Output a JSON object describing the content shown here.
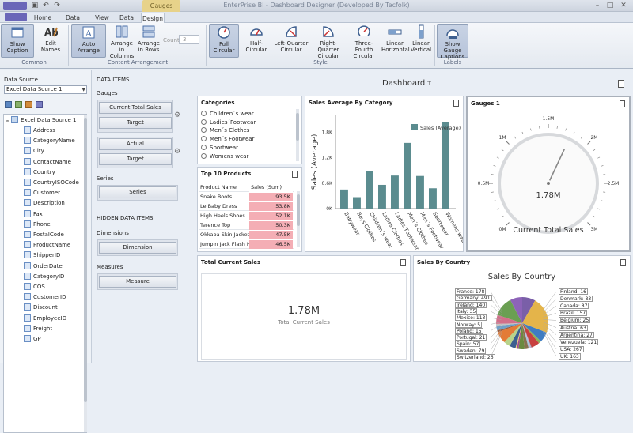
{
  "window": {
    "title": "EnterPrise BI - Dashboard Designer (Developed By Tecfolk)",
    "context_tab": "Gauges Tools"
  },
  "tabs": [
    {
      "label": "Home"
    },
    {
      "label": "Data Source"
    },
    {
      "label": "View"
    },
    {
      "label": "Data"
    },
    {
      "label": "Design"
    }
  ],
  "ribbon": {
    "buttons": [
      "Show Caption",
      "Edit Names",
      "Auto Arrange",
      "Arrange in Columns",
      "Arrange in Rows",
      "Full Circular",
      "Half-Circular",
      "Left-Quarter Circular",
      "Right-Quarter Circular",
      "Three-Fourth Circular",
      "Linear Horizontal",
      "Linear Vertical",
      "Show Gauge Captions"
    ],
    "count_label": "Count",
    "count_value": "3",
    "groups": [
      "Common",
      "Content Arrangement",
      "Style",
      "Labels"
    ]
  },
  "left": {
    "title": "Data Source",
    "select": "Excel Data Source 1",
    "root": "Excel Data Source 1",
    "fields": [
      "Address",
      "CategoryName",
      "City",
      "ContactName",
      "Country",
      "CountryISOCode",
      "Customer",
      "Description",
      "Fax",
      "Phone",
      "PostalCode",
      "ProductName",
      "ShipperID",
      "OrderDate",
      "CategoryID",
      "COS",
      "CustomerID",
      "Discount",
      "EmployeeID",
      "Freight",
      "GP"
    ]
  },
  "items": {
    "title": "DATA ITEMS",
    "gauges": "Gauges",
    "btn_current": "Current Total Sales",
    "btn_target1": "Target",
    "btn_actual": "Actual",
    "btn_target2": "Target",
    "series_label": "Series",
    "btn_series": "Series",
    "hidden": "HIDDEN DATA ITEMS",
    "dimensions": "Dimensions",
    "btn_dimension": "Dimension",
    "measures": "Measures",
    "btn_measure": "Measure"
  },
  "dashboard": {
    "title": "Dashboard",
    "categories": {
      "title": "Categories",
      "items": [
        "Children´s wear",
        "Ladies´Footwear",
        "Men´s Clothes",
        "Men´s Footwear",
        "Sportwear",
        "Womens wear"
      ]
    },
    "top10": {
      "title": "Top 10 Products",
      "col1": "Product Name",
      "col2": "Sales (Sum)",
      "rows": [
        [
          "Snake Boots",
          "93.5K"
        ],
        [
          "Le Baby Dress",
          "53.8K"
        ],
        [
          "High Heels Shoes",
          "52.1K"
        ],
        [
          "Terence Top",
          "50.3K"
        ],
        [
          "Okkaba Skin Jackets",
          "47.5K"
        ],
        [
          "Jumpin Jack Flash Hi...",
          "46.5K"
        ]
      ]
    },
    "sales_avg": {
      "title": "Sales Average By Category",
      "legend": "Sales (Average)",
      "ylabel": "Sales (Average)",
      "color": "#5b8c8f"
    },
    "gauge": {
      "title": "Gauges 1",
      "value": "1.78M",
      "caption": "Current Total Sales",
      "ticks": [
        "0M",
        "0.5M",
        "1M",
        "1.5M",
        "2M",
        "2.5M",
        "3M"
      ],
      "fraction": 0.593
    },
    "total": {
      "title": "Total Current Sales",
      "value": "1.78M",
      "caption": "Total Current Sales"
    },
    "country": {
      "title": "Sales By Country",
      "chart_title": "Sales By Country",
      "left_labels": [
        "France: 178",
        "Germany: 491",
        "Ireland: 140",
        "Italy: 35",
        "Mexico: 113",
        "Norway: 5",
        "Poland: 15",
        "Portugal: 21",
        "Spain: 57",
        "Sweden: 79",
        "Switzerland: 26"
      ],
      "right_labels": [
        "Finland: 16",
        "Denmark: 83",
        "Canada: 87",
        "Brazil: 157",
        "Belgium: 25",
        "Austria: 63",
        "Argentina: 27",
        "Venezuela: 121",
        "USA: 267",
        "UK: 163"
      ]
    }
  },
  "chart_data": {
    "type": "bar",
    "title": "Sales Average By Category",
    "ylabel": "Sales (Average)",
    "xlabel": "",
    "categories": [
      "Babywear",
      "Boys Clothes",
      "Children´s wear",
      "Ladies Clothes",
      "Ladies´Footwear",
      "Men´s Clothes",
      "Men´s Footwear",
      "Sportwear",
      "Womens wear"
    ],
    "series": [
      {
        "name": "Sales (Average)",
        "values": [
          450,
          270,
          880,
          560,
          780,
          1550,
          770,
          480,
          2050
        ]
      }
    ],
    "yticks": [
      "0K",
      "0.6K",
      "1.2K",
      "1.8K"
    ],
    "ylim": [
      0,
      2200
    ],
    "legend": "top-right",
    "grid": false
  }
}
